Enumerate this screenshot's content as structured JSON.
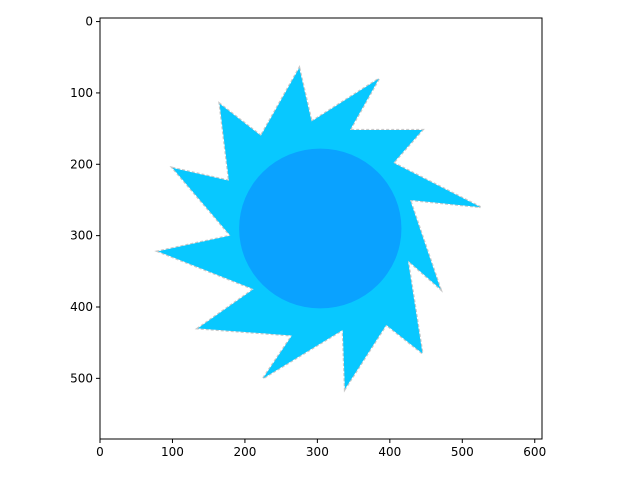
{
  "chart_data": {
    "type": "image",
    "title": "",
    "xlabel": "",
    "ylabel": "",
    "xlim": [
      0,
      610
    ],
    "ylim": [
      585,
      -5
    ],
    "y_axis_inverted": true,
    "x_ticks": [
      0,
      100,
      200,
      300,
      400,
      500,
      600
    ],
    "y_ticks": [
      0,
      100,
      200,
      300,
      400,
      500
    ],
    "x_tick_labels": [
      "0",
      "100",
      "200",
      "300",
      "400",
      "500",
      "600"
    ],
    "y_tick_labels": [
      "0",
      "100",
      "200",
      "300",
      "400",
      "500"
    ],
    "grid": false,
    "image": {
      "subject": "sun",
      "ray_color": "#08c8ff",
      "disc_color": "#0aa2ff",
      "outline_color": "#9a9a9a",
      "disc_center": [
        304,
        290
      ],
      "disc_radius": 112,
      "ray_tips": [
        [
          275,
          65
        ],
        [
          385,
          80
        ],
        [
          445,
          152
        ],
        [
          525,
          260
        ],
        [
          470,
          375
        ],
        [
          445,
          465
        ],
        [
          338,
          515
        ],
        [
          225,
          500
        ],
        [
          135,
          430
        ],
        [
          80,
          322
        ],
        [
          100,
          205
        ],
        [
          165,
          115
        ]
      ],
      "valley_points": [
        [
          292,
          140
        ],
        [
          345,
          152
        ],
        [
          405,
          198
        ],
        [
          428,
          250
        ],
        [
          425,
          335
        ],
        [
          395,
          425
        ],
        [
          335,
          432
        ],
        [
          265,
          440
        ],
        [
          212,
          375
        ],
        [
          180,
          300
        ],
        [
          178,
          223
        ],
        [
          222,
          160
        ]
      ]
    }
  }
}
